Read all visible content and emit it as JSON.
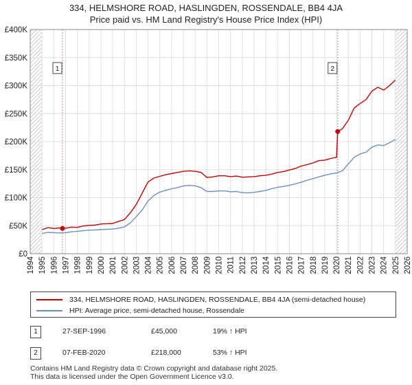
{
  "header": {
    "title": "334, HELMSHORE ROAD, HASLINGDEN, ROSSENDALE, BB4 4JA",
    "subtitle": "Price paid vs. HM Land Registry's House Price Index (HPI)"
  },
  "colors": {
    "property": "#cc0000",
    "hpi": "#6a8fc0",
    "hatch": "#a9a9a9",
    "grid": "#dfdfdf",
    "vline": "#e08080"
  },
  "chart_data": {
    "type": "line",
    "title": "Price paid vs. HM Land Registry's House Price Index (HPI)",
    "xlim": [
      1994,
      2026
    ],
    "ylim": [
      0,
      400000
    ],
    "x_ticks": [
      1994,
      1995,
      1996,
      1997,
      1998,
      1999,
      2000,
      2001,
      2002,
      2003,
      2004,
      2005,
      2006,
      2007,
      2008,
      2009,
      2010,
      2011,
      2012,
      2013,
      2014,
      2015,
      2016,
      2017,
      2018,
      2019,
      2020,
      2021,
      2022,
      2023,
      2024,
      2025,
      2026
    ],
    "y_ticks": [
      {
        "value": 0,
        "label": "£0"
      },
      {
        "value": 50000,
        "label": "£50K"
      },
      {
        "value": 100000,
        "label": "£100K"
      },
      {
        "value": 150000,
        "label": "£150K"
      },
      {
        "value": 200000,
        "label": "£200K"
      },
      {
        "value": 250000,
        "label": "£250K"
      },
      {
        "value": 300000,
        "label": "£300K"
      },
      {
        "value": 350000,
        "label": "£350K"
      },
      {
        "value": 400000,
        "label": "£400K"
      }
    ],
    "hatched_ranges": [
      [
        1994,
        1995
      ],
      [
        2025,
        2026
      ]
    ],
    "series": [
      {
        "name": "334, HELMSHORE ROAD, HASLINGDEN, ROSSENDALE, BB4 4JA (semi-detached house)",
        "x": [
          1995.0,
          1995.5,
          1996.0,
          1996.5,
          1996.74,
          1997.0,
          1997.5,
          1998.0,
          1998.5,
          1999.0,
          1999.5,
          2000.0,
          2000.5,
          2001.0,
          2001.5,
          2002.0,
          2002.5,
          2003.0,
          2003.5,
          2004.0,
          2004.5,
          2005.0,
          2005.5,
          2006.0,
          2006.5,
          2007.0,
          2007.5,
          2008.0,
          2008.5,
          2009.0,
          2009.5,
          2010.0,
          2010.5,
          2011.0,
          2011.5,
          2012.0,
          2012.5,
          2013.0,
          2013.5,
          2014.0,
          2014.5,
          2015.0,
          2015.5,
          2016.0,
          2016.5,
          2017.0,
          2017.5,
          2018.0,
          2018.5,
          2019.0,
          2019.5,
          2020.0,
          2020.1,
          2020.5,
          2021.0,
          2021.5,
          2022.0,
          2022.5,
          2023.0,
          2023.5,
          2024.0,
          2024.5,
          2025.0
        ],
        "y": [
          43000,
          46500,
          45000,
          46000,
          45000,
          45500,
          47500,
          47000,
          49500,
          50500,
          51000,
          53000,
          53500,
          54000,
          57500,
          61000,
          73000,
          88000,
          108000,
          128000,
          135000,
          138000,
          141000,
          143000,
          145000,
          147000,
          148000,
          147000,
          145000,
          136000,
          137000,
          139000,
          139000,
          137500,
          138500,
          136500,
          137000,
          137500,
          139000,
          140000,
          142000,
          145000,
          146500,
          149500,
          152000,
          156500,
          159000,
          162000,
          166000,
          167000,
          170000,
          172000,
          218000,
          223000,
          238000,
          260000,
          268000,
          275000,
          290000,
          297000,
          292000,
          300000,
          310000
        ],
        "color": "#cc0000"
      },
      {
        "name": "HPI: Average price, semi-detached house, Rossendale",
        "x": [
          1995.0,
          1995.5,
          1996.0,
          1996.5,
          1997.0,
          1997.5,
          1998.0,
          1998.5,
          1999.0,
          1999.5,
          2000.0,
          2000.5,
          2001.0,
          2001.5,
          2002.0,
          2002.5,
          2003.0,
          2003.5,
          2004.0,
          2004.5,
          2005.0,
          2005.5,
          2006.0,
          2006.5,
          2007.0,
          2007.5,
          2008.0,
          2008.5,
          2009.0,
          2009.5,
          2010.0,
          2010.5,
          2011.0,
          2011.5,
          2012.0,
          2012.5,
          2013.0,
          2013.5,
          2014.0,
          2014.5,
          2015.0,
          2015.5,
          2016.0,
          2016.5,
          2017.0,
          2017.5,
          2018.0,
          2018.5,
          2019.0,
          2019.5,
          2020.0,
          2020.5,
          2021.0,
          2021.5,
          2022.0,
          2022.5,
          2023.0,
          2023.5,
          2024.0,
          2024.5,
          2025.0
        ],
        "y": [
          36000,
          38000,
          37500,
          37000,
          37500,
          39000,
          40000,
          41000,
          42000,
          42500,
          43000,
          43500,
          44000,
          45500,
          48000,
          55000,
          66000,
          78000,
          94000,
          104000,
          110000,
          113000,
          116000,
          118000,
          121000,
          122000,
          121000,
          118000,
          111000,
          111000,
          112000,
          112000,
          110500,
          111000,
          109000,
          108500,
          109500,
          111000,
          113000,
          116000,
          118500,
          120000,
          122000,
          124500,
          127500,
          131000,
          134000,
          137000,
          140000,
          142500,
          144000,
          148000,
          160000,
          172000,
          178000,
          181000,
          190000,
          194000,
          193000,
          198000,
          204000
        ],
        "color": "#6a8fc0"
      }
    ],
    "annotations": [
      {
        "label": "1",
        "x": 1996.74,
        "y": 45000
      },
      {
        "label": "2",
        "x": 2020.1,
        "y": 218000
      }
    ]
  },
  "legend": {
    "items": [
      {
        "label": "334, HELMSHORE ROAD, HASLINGDEN, ROSSENDALE, BB4 4JA (semi-detached house)"
      },
      {
        "label": "HPI: Average price, semi-detached house, Rossendale"
      }
    ]
  },
  "transactions": [
    {
      "id": "1",
      "date": "27-SEP-1996",
      "price": "£45,000",
      "hpi": "19% ↑ HPI"
    },
    {
      "id": "2",
      "date": "07-FEB-2020",
      "price": "£218,000",
      "hpi": "53% ↑ HPI"
    }
  ],
  "footer": {
    "line1": "Contains HM Land Registry data © Crown copyright and database right 2025.",
    "line2": "This data is licensed under the Open Government Licence v3.0."
  }
}
